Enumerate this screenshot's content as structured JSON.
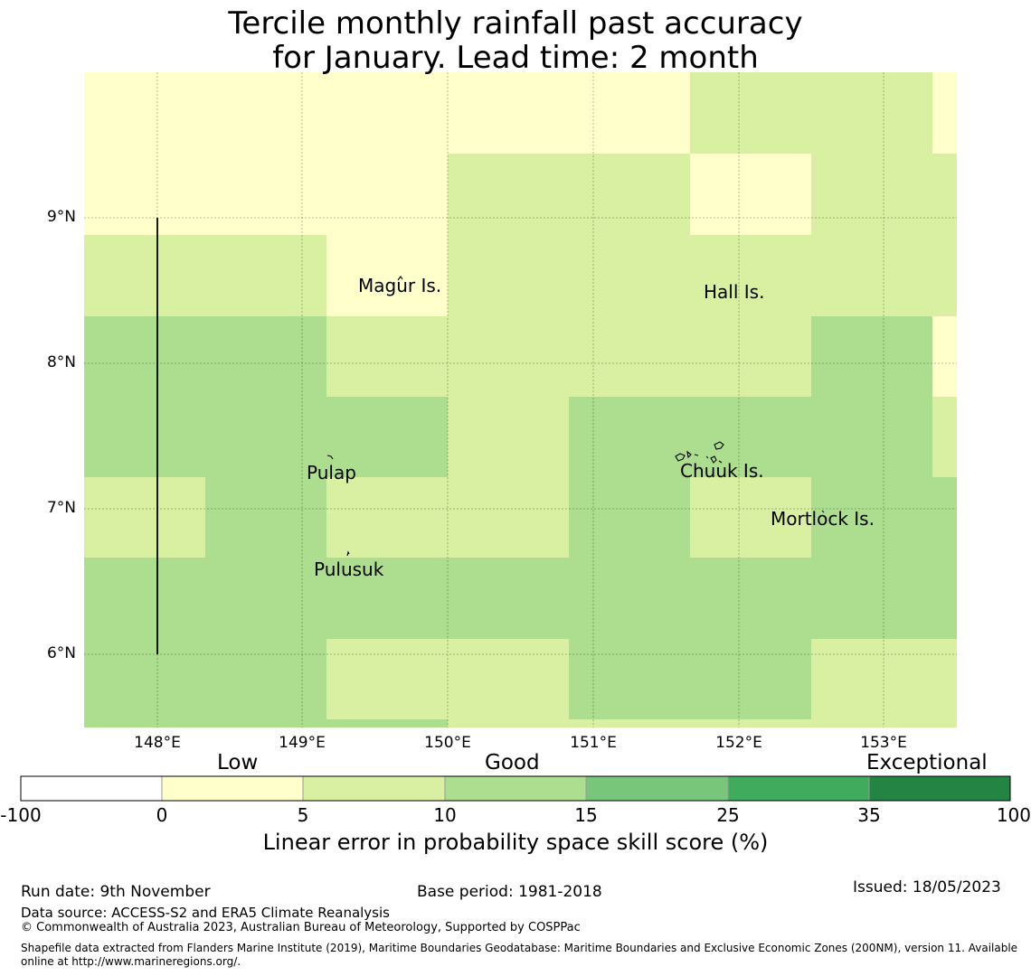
{
  "title": {
    "line1": "Tercile monthly rainfall past accuracy",
    "line2": "for January. Lead time: 2 month"
  },
  "map": {
    "lat_labels": [
      "9°N",
      "8°N",
      "7°N",
      "6°N"
    ],
    "lon_labels": [
      "148°E",
      "149°E",
      "150°E",
      "151°E",
      "152°E",
      "153°E"
    ],
    "places": {
      "magur": "Magur Is.",
      "hall": "Hall Is.",
      "pulap": "Pulap",
      "chuuk": "Chuuk Is.",
      "mortlock": "Mortlock Is.",
      "pulusuk": "Pulusuk"
    }
  },
  "colorbar": {
    "category_labels": {
      "low": "Low",
      "good": "Good",
      "exceptional": "Exceptional"
    },
    "ticks": [
      "-100",
      "0",
      "5",
      "10",
      "15",
      "25",
      "35",
      "100"
    ],
    "colors": [
      "#ffffff",
      "#ffffcc",
      "#d9f0a3",
      "#addd8e",
      "#78c679",
      "#41ab5d",
      "#238443"
    ],
    "label": "Linear error in probability space skill score (%)"
  },
  "footer": {
    "run_date": "Run date: 9th November",
    "base_period": "Base period: 1981-2018",
    "issued": "Issued: 18/05/2023",
    "data_source": "Data source: ACCESS-S2 and ERA5 Climate Reanalysis",
    "copyright": "© Commonwealth of Australia 2023, Australian Bureau of Meteorology, Supported by COSPPac",
    "shapefile_line1": "Shapefile data extracted from Flanders Marine Institute (2019), Maritime Boundaries Geodatabase: Maritime Boundaries and Exclusive Economic Zones (200NM), version 11. Available",
    "shapefile_line2": "online at http://www.marineregions.org/."
  }
}
